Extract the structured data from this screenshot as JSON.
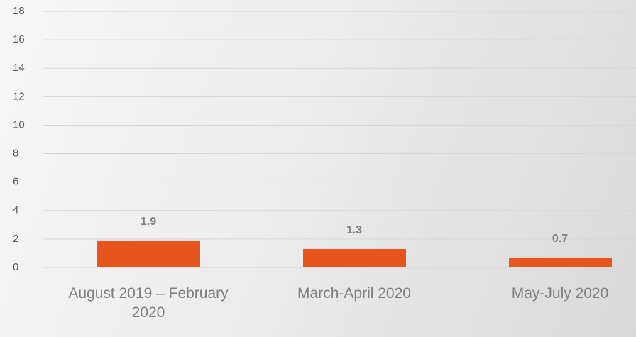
{
  "chart_data": {
    "type": "bar",
    "categories": [
      "August 2019 – February 2020",
      "March-April 2020",
      "May-July 2020"
    ],
    "values": [
      1.9,
      1.3,
      0.7
    ],
    "color": "#e8561f",
    "ylim": [
      0,
      18
    ],
    "yticks": [
      0,
      2,
      4,
      6,
      8,
      10,
      12,
      14,
      16,
      18
    ],
    "grid": true
  }
}
